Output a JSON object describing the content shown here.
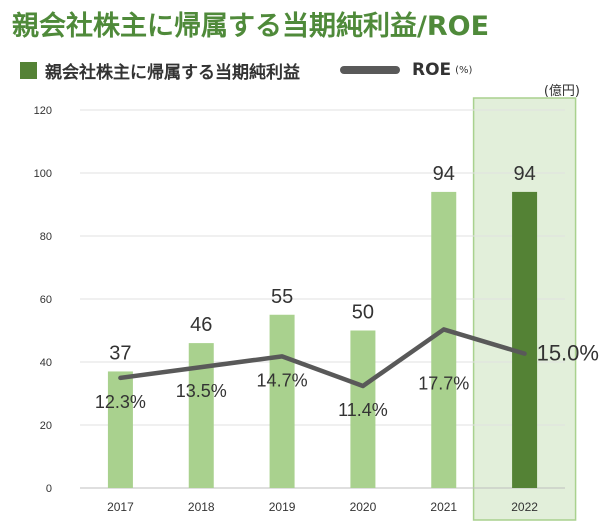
{
  "title": "親会社株主に帰属する当期純利益/ROE",
  "legend": {
    "bar_label": "親会社株主に帰属する当期純利益",
    "line_label": "ROE",
    "line_unit": "(%)"
  },
  "unit_label": "(億円)",
  "colors": {
    "bar": "#a9d18e",
    "bar_highlight": "#548235",
    "highlight_box_fill": "#e2efda",
    "highlight_box_stroke": "#a9d18e",
    "line": "#595959",
    "title": "#4f8a3a"
  },
  "chart_data": {
    "type": "bar",
    "title": "親会社株主に帰属する当期純利益/ROE",
    "categories": [
      "2017",
      "2018",
      "2019",
      "2020",
      "2021",
      "2022"
    ],
    "series": [
      {
        "name": "親会社株主に帰属する当期純利益",
        "type": "bar",
        "values": [
          37,
          46,
          55,
          50,
          94,
          94
        ],
        "labels": [
          "37",
          "46",
          "55",
          "50",
          "94",
          "94"
        ]
      },
      {
        "name": "ROE",
        "type": "line",
        "values": [
          12.3,
          13.5,
          14.7,
          11.4,
          17.7,
          15.0
        ],
        "labels": [
          "12.3%",
          "13.5%",
          "14.7%",
          "11.4%",
          "17.7%",
          "15.0%"
        ]
      }
    ],
    "ylim": [
      0,
      120
    ],
    "yticks": [
      "0",
      "20",
      "40",
      "60",
      "80",
      "100",
      "120"
    ],
    "grid": true,
    "highlight_category": "2022"
  }
}
